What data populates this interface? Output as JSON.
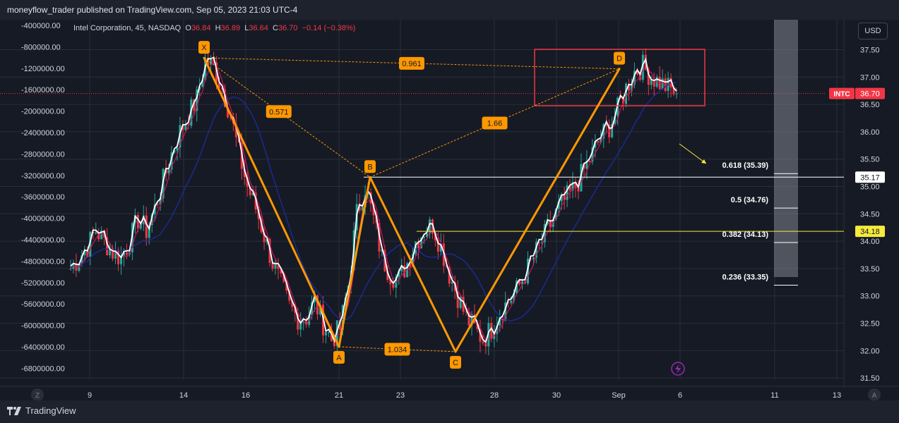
{
  "header": {
    "published": "moneyflow_trader published on TradingView.com, Sep 05, 2023 21:03 UTC-4"
  },
  "legend": {
    "symbol": "Intel Corporation, 45, NASDAQ",
    "o_label": "O",
    "o": "36.84",
    "h_label": "H",
    "h": "36.89",
    "l_label": "L",
    "l": "36.64",
    "c_label": "C",
    "c": "36.70",
    "change": "−0.14 (−0.38%)"
  },
  "currency_button": "USD",
  "footer": {
    "brand": "TradingView"
  },
  "colors": {
    "up": "#26a69a",
    "down": "#f23645",
    "pattern": "#ff9800",
    "ma_blue": "#1c2a8c",
    "ma_red": "#c2185b",
    "white_line": "#ffffff",
    "fib_white": "#ffffff",
    "fib_yellow": "#f5eb3b"
  },
  "chart_data": {
    "type": "line",
    "title": "",
    "price_axis": {
      "ticks": [
        "37.50",
        "37.00",
        "36.50",
        "36.00",
        "35.50",
        "35.00",
        "34.50",
        "34.00",
        "33.50",
        "33.00",
        "32.50",
        "32.00",
        "31.50"
      ],
      "range": [
        31.5,
        37.5
      ]
    },
    "left_axis": {
      "ticks": [
        "-400000.00",
        "-800000.00",
        "-1200000.00",
        "-1600000.00",
        "-2000000.00",
        "-2400000.00",
        "-2800000.00",
        "-3200000.00",
        "-3600000.00",
        "-4000000.00",
        "-4400000.00",
        "-4800000.00",
        "-5200000.00",
        "-5600000.00",
        "-6000000.00",
        "-6400000.00",
        "-6800000.00"
      ]
    },
    "time_axis": {
      "ticks": [
        "9",
        "14",
        "16",
        "21",
        "23",
        "28",
        "30",
        "Sep",
        "6",
        "11",
        "13"
      ],
      "left_button": "Z",
      "right_button": "A"
    },
    "harmonic_pattern": {
      "points": [
        {
          "label": "X",
          "date": "Aug 15",
          "price": 37.35
        },
        {
          "label": "A",
          "date": "Aug 21",
          "price": 32.07
        },
        {
          "label": "B",
          "date": "Aug 22",
          "price": 35.17
        },
        {
          "label": "C",
          "date": "Aug 25",
          "price": 31.98
        },
        {
          "label": "D",
          "date": "Sep 1",
          "price": 37.15
        }
      ],
      "ratios": [
        {
          "label": "0.961",
          "between": "X-D"
        },
        {
          "label": "0.571",
          "between": "X-B"
        },
        {
          "label": "1.66",
          "between": "B-D"
        },
        {
          "label": "1.034",
          "between": "A-C"
        }
      ]
    },
    "fib_levels": [
      {
        "label": "0.618 (35.39)",
        "price": 35.39
      },
      {
        "label": "0.5 (34.76)",
        "price": 34.76
      },
      {
        "label": "0.382 (34.13)",
        "price": 34.13
      },
      {
        "label": "0.236 (33.35)",
        "price": 33.35
      }
    ],
    "horizontal_lines": [
      {
        "price": 35.17,
        "label": "35.17",
        "color": "#ffffff"
      },
      {
        "price": 34.18,
        "label": "34.18",
        "color": "#f5eb3b"
      }
    ],
    "current_price": {
      "ticker": "INTC",
      "price": 36.7,
      "label": "36.70"
    },
    "series": [
      {
        "values": [
          33.5,
          33.7,
          33.9,
          34.2,
          34.0,
          33.8,
          33.7,
          34.0,
          34.4,
          34.2,
          34.6,
          35.1,
          35.6,
          36.0,
          36.3,
          36.6,
          37.3,
          37.2,
          36.8,
          36.3,
          35.6,
          35.0,
          34.6,
          34.1,
          33.6,
          33.2,
          32.8,
          32.6,
          32.6,
          32.9,
          32.5,
          32.2,
          32.4,
          33.2,
          34.5,
          35.0,
          34.4,
          33.7,
          33.4,
          33.3,
          33.6,
          34.0,
          34.2,
          34.3,
          33.9,
          33.4,
          33.0,
          32.6,
          32.4,
          32.2,
          32.4,
          32.7,
          32.9,
          33.1,
          33.4,
          33.7,
          34.0,
          34.3,
          34.6,
          34.8,
          35.0,
          35.3,
          35.6,
          35.9,
          36.1,
          36.4,
          36.8,
          37.1,
          37.2,
          37.0,
          36.9,
          36.8,
          36.7
        ]
      }
    ]
  }
}
